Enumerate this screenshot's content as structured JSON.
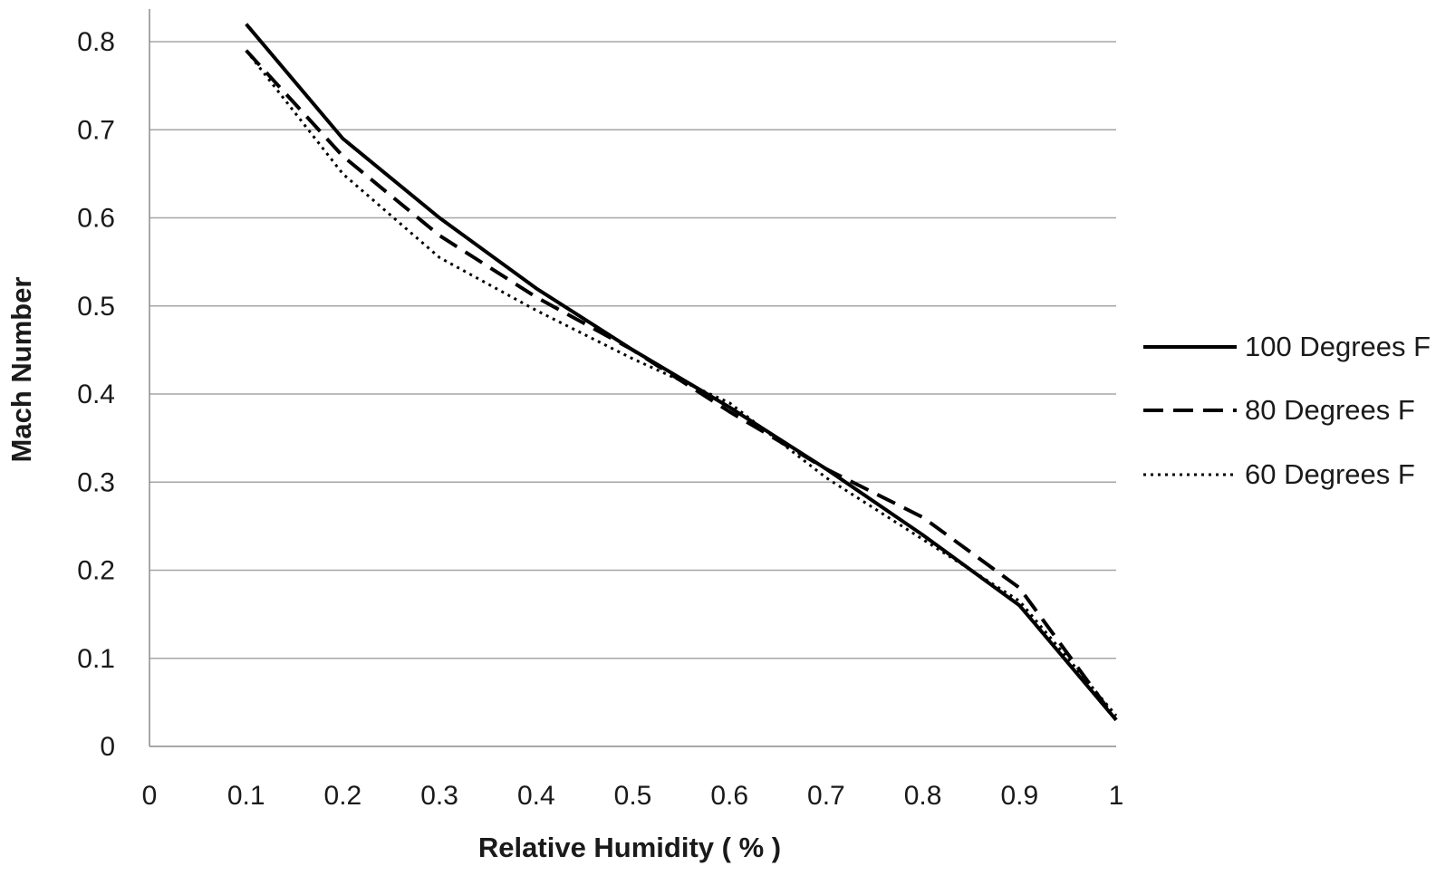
{
  "chart_data": {
    "type": "line",
    "title": "",
    "xlabel": "Relative Humidity ( % )",
    "ylabel": "Mach Number",
    "xlim": [
      0,
      1
    ],
    "ylim": [
      0,
      0.8
    ],
    "x_ticks": [
      "0",
      "0.1",
      "0.2",
      "0.3",
      "0.4",
      "0.5",
      "0.6",
      "0.7",
      "0.8",
      "0.9",
      "1"
    ],
    "y_ticks": [
      "0",
      "0.1",
      "0.2",
      "0.3",
      "0.4",
      "0.5",
      "0.6",
      "0.7",
      "0.8"
    ],
    "grid": "horizontal",
    "legend_position": "right",
    "series": [
      {
        "name": "100 Degrees F",
        "style": "solid",
        "color": "#000000",
        "x": [
          0.1,
          0.2,
          0.3,
          0.4,
          0.5,
          0.6,
          0.7,
          0.8,
          0.9,
          1.0
        ],
        "y": [
          0.82,
          0.69,
          0.6,
          0.52,
          0.45,
          0.385,
          0.315,
          0.24,
          0.16,
          0.03
        ]
      },
      {
        "name": "80 Degrees F",
        "style": "dashed",
        "color": "#000000",
        "x": [
          0.1,
          0.2,
          0.3,
          0.4,
          0.5,
          0.6,
          0.7,
          0.8,
          0.9,
          1.0
        ],
        "y": [
          0.79,
          0.67,
          0.58,
          0.51,
          0.45,
          0.38,
          0.315,
          0.26,
          0.18,
          0.03
        ]
      },
      {
        "name": "60 Degrees F",
        "style": "dotted",
        "color": "#000000",
        "x": [
          0.1,
          0.2,
          0.3,
          0.4,
          0.5,
          0.6,
          0.7,
          0.8,
          0.9,
          1.0
        ],
        "y": [
          0.79,
          0.65,
          0.555,
          0.495,
          0.44,
          0.39,
          0.305,
          0.235,
          0.165,
          0.035
        ]
      }
    ]
  }
}
